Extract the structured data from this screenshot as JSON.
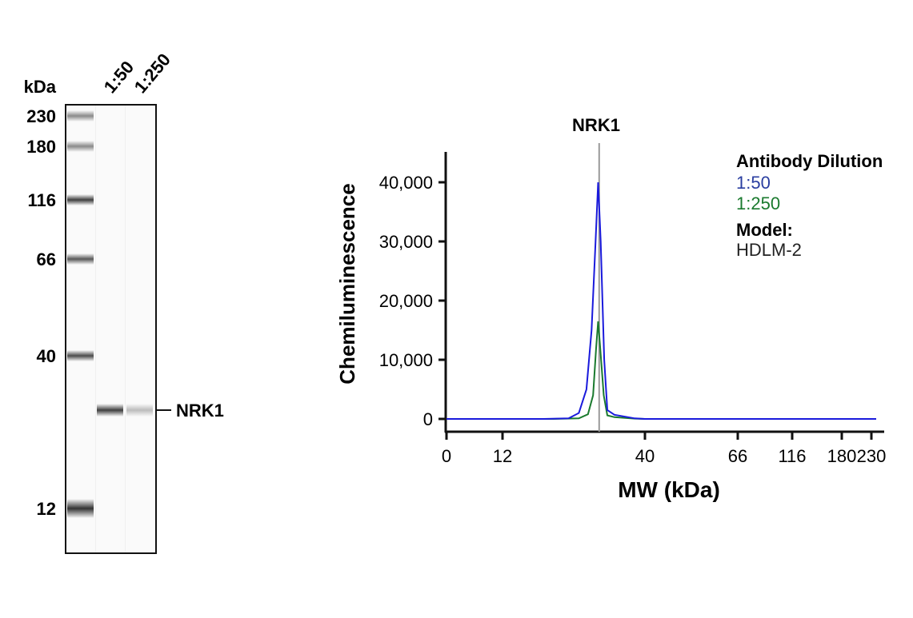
{
  "blot": {
    "unit_label": "kDa",
    "lane_labels": [
      "1:50",
      "1:250"
    ],
    "markers": [
      {
        "label": "230",
        "band_intensity": 0.45
      },
      {
        "label": "180",
        "band_intensity": 0.45
      },
      {
        "label": "116",
        "band_intensity": 0.75
      },
      {
        "label": "66",
        "band_intensity": 0.65
      },
      {
        "label": "40",
        "band_intensity": 0.7
      },
      {
        "label": "12",
        "band_intensity": 0.8
      }
    ],
    "target_label": "NRK1",
    "target_band_intensity": [
      0.75,
      0.25
    ]
  },
  "chart_data": {
    "type": "line",
    "title": "NRK1",
    "xlabel": "MW (kDa)",
    "ylabel": "Chemiluminescence",
    "x_ticks": [
      "0",
      "12",
      "40",
      "66",
      "116",
      "180",
      "230"
    ],
    "y_ticks": [
      "0",
      "10,000",
      "20,000",
      "30,000",
      "40,000"
    ],
    "ylim": [
      0,
      45000
    ],
    "marker_line_x": 31,
    "legend": {
      "title": "Antibody Dilution",
      "entries": [
        "1:50",
        "1:250"
      ],
      "model_label": "Model:",
      "model_value": "HDLM-2",
      "placement": "top-right"
    },
    "colors": {
      "1:50": "#1a1adc",
      "1:250": "#1a7a2e",
      "marker_line": "#999999"
    },
    "series": [
      {
        "name": "1:50",
        "points": [
          [
            0,
            0
          ],
          [
            12,
            0
          ],
          [
            20,
            0
          ],
          [
            25,
            100
          ],
          [
            27,
            1000
          ],
          [
            28.5,
            5000
          ],
          [
            29.5,
            15000
          ],
          [
            30.3,
            30000
          ],
          [
            30.8,
            40000
          ],
          [
            31.3,
            30000
          ],
          [
            32,
            10000
          ],
          [
            32.6,
            1500
          ],
          [
            34,
            700
          ],
          [
            38,
            100
          ],
          [
            40,
            0
          ],
          [
            66,
            0
          ],
          [
            116,
            0
          ],
          [
            180,
            0
          ],
          [
            250,
            0
          ]
        ]
      },
      {
        "name": "1:250",
        "points": [
          [
            0,
            0
          ],
          [
            12,
            0
          ],
          [
            22,
            0
          ],
          [
            27,
            100
          ],
          [
            28.8,
            800
          ],
          [
            29.8,
            4000
          ],
          [
            30.4,
            12000
          ],
          [
            30.8,
            16500
          ],
          [
            31.2,
            12000
          ],
          [
            31.9,
            4000
          ],
          [
            32.6,
            600
          ],
          [
            34,
            300
          ],
          [
            38,
            50
          ],
          [
            40,
            0
          ],
          [
            66,
            0
          ],
          [
            116,
            0
          ],
          [
            180,
            0
          ],
          [
            250,
            0
          ]
        ]
      }
    ]
  }
}
